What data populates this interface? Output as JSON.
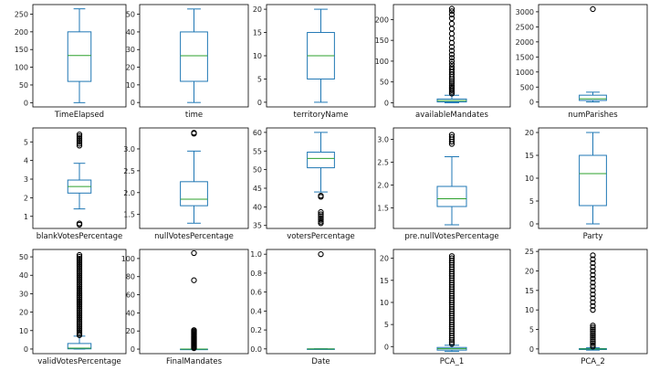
{
  "chart_data": [
    {
      "type": "box",
      "xlabel": "TimeElapsed",
      "yticks": [
        0,
        50,
        100,
        150,
        200,
        250
      ],
      "ylim": [
        -12,
        277
      ],
      "stats": {
        "min": 0,
        "q1": 60,
        "median": 133,
        "q3": 200,
        "max": 265
      },
      "fliers": []
    },
    {
      "type": "box",
      "xlabel": "time",
      "yticks": [
        0,
        10,
        20,
        30,
        40,
        50
      ],
      "ylim": [
        -2.5,
        55.5
      ],
      "stats": {
        "min": 0,
        "q1": 12,
        "median": 26.5,
        "q3": 40,
        "max": 53
      },
      "fliers": []
    },
    {
      "type": "box",
      "xlabel": "territoryName",
      "yticks": [
        0,
        5,
        10,
        15,
        20
      ],
      "ylim": [
        -1,
        21
      ],
      "stats": {
        "min": 0,
        "q1": 5,
        "median": 10,
        "q3": 15,
        "max": 20
      },
      "fliers": []
    },
    {
      "type": "box",
      "xlabel": "availableMandates",
      "yticks": [
        0,
        50,
        100,
        150,
        200
      ],
      "ylim": [
        -10,
        236
      ],
      "stats": {
        "min": 0,
        "q1": 2,
        "median": 5,
        "q3": 9,
        "max": 18
      },
      "fliers": [
        22,
        26,
        30,
        34,
        38,
        42,
        47,
        52,
        57,
        62,
        68,
        74,
        80,
        86,
        93,
        100,
        108,
        116,
        125,
        134,
        144,
        155,
        166,
        178,
        190,
        203,
        212,
        220,
        226
      ]
    },
    {
      "type": "box",
      "xlabel": "numParishes",
      "yticks": [
        0,
        500,
        1000,
        1500,
        2000,
        2500,
        3000
      ],
      "ylim": [
        -160,
        3240
      ],
      "stats": {
        "min": 5,
        "q1": 55,
        "median": 110,
        "q3": 230,
        "max": 330
      },
      "fliers": [
        3090
      ]
    },
    {
      "type": "box",
      "xlabel": "blankVotesPercentage",
      "yticks": [
        1,
        2,
        3,
        4,
        5
      ],
      "ylim": [
        0.35,
        5.75
      ],
      "stats": {
        "min": 1.4,
        "q1": 2.25,
        "median": 2.6,
        "q3": 2.95,
        "max": 3.85
      },
      "fliers": [
        0.55,
        0.62,
        4.8,
        4.9,
        5.0,
        5.1,
        5.2,
        5.3,
        5.4
      ]
    },
    {
      "type": "box",
      "xlabel": "nullVotesPercentage",
      "yticks": [
        1.5,
        2.0,
        2.5,
        3.0
      ],
      "ylim": [
        1.18,
        3.48
      ],
      "stats": {
        "min": 1.3,
        "q1": 1.7,
        "median": 1.85,
        "q3": 2.25,
        "max": 2.95
      },
      "fliers": [
        3.35,
        3.37
      ]
    },
    {
      "type": "box",
      "xlabel": "votersPercentage",
      "yticks": [
        35,
        40,
        45,
        50,
        55,
        60
      ],
      "ylim": [
        34.2,
        61.2
      ],
      "stats": {
        "min": 44,
        "q1": 50.5,
        "median": 53,
        "q3": 54.7,
        "max": 60
      },
      "fliers": [
        42.7,
        43,
        35.6,
        36,
        36.5,
        37,
        37.5,
        38,
        38.6
      ]
    },
    {
      "type": "box",
      "xlabel": "pre.nullVotesPercentage",
      "yticks": [
        1.5,
        2.0,
        2.5,
        3.0
      ],
      "ylim": [
        1.05,
        3.25
      ],
      "stats": {
        "min": 1.13,
        "q1": 1.53,
        "median": 1.7,
        "q3": 1.97,
        "max": 2.62
      },
      "fliers": [
        2.9,
        2.95,
        3.0,
        3.05,
        3.1
      ]
    },
    {
      "type": "box",
      "xlabel": "Party",
      "yticks": [
        0,
        5,
        10,
        15,
        20
      ],
      "ylim": [
        -1,
        21
      ],
      "stats": {
        "min": 0,
        "q1": 4,
        "median": 11,
        "q3": 15,
        "max": 20
      },
      "fliers": []
    },
    {
      "type": "box",
      "xlabel": "validVotesPercentage",
      "yticks": [
        0,
        10,
        20,
        30,
        40,
        50
      ],
      "ylim": [
        -2.5,
        54
      ],
      "stats": {
        "min": 0,
        "q1": 0.1,
        "median": 0.5,
        "q3": 3,
        "max": 7
      },
      "fliers": [
        7.5,
        8.2,
        9,
        10,
        11,
        12,
        13,
        14,
        15,
        16,
        17,
        18,
        19,
        20,
        21,
        22,
        23,
        24,
        25,
        26,
        27,
        28,
        29,
        30,
        31,
        32,
        33,
        34,
        35,
        36,
        37,
        38,
        39,
        40,
        41,
        42,
        43,
        44,
        45,
        46,
        47,
        48,
        49,
        50,
        51
      ]
    },
    {
      "type": "box",
      "xlabel": "FinalMandates",
      "yticks": [
        0,
        20,
        40,
        60,
        80,
        100
      ],
      "ylim": [
        -5,
        110
      ],
      "stats": {
        "min": 0,
        "q1": 0,
        "median": 0,
        "q3": 0,
        "max": 0
      },
      "fliers": [
        1,
        2,
        3,
        4,
        5,
        6,
        7,
        8,
        9,
        10,
        11,
        12,
        13,
        14,
        15,
        16,
        17,
        18,
        19,
        20,
        21,
        76,
        106
      ]
    },
    {
      "type": "box",
      "xlabel": "Date",
      "yticks": [
        0.0,
        0.2,
        0.4,
        0.6,
        0.8,
        1.0
      ],
      "ylim": [
        -0.05,
        1.05
      ],
      "stats": {
        "min": 0,
        "q1": 0,
        "median": 0,
        "q3": 0,
        "max": 0
      },
      "fliers": [
        1.0
      ]
    },
    {
      "type": "box",
      "xlabel": "PCA_1",
      "yticks": [
        0,
        5,
        10,
        15,
        20
      ],
      "ylim": [
        -1.6,
        22
      ],
      "stats": {
        "min": -1.1,
        "q1": -0.8,
        "median": -0.5,
        "q3": -0.2,
        "max": 0.3
      },
      "fliers": [
        0.6,
        1,
        1.5,
        2,
        2.5,
        3,
        3.5,
        4,
        4.5,
        5,
        5.5,
        6,
        6.5,
        7,
        7.5,
        8,
        8.5,
        9,
        9.5,
        10,
        10.5,
        11,
        11.5,
        12,
        12.5,
        13,
        13.5,
        14,
        14.5,
        15,
        15.5,
        16,
        16.5,
        17,
        17.5,
        18,
        18.5,
        19,
        19.5,
        20,
        20.5
      ]
    },
    {
      "type": "box",
      "xlabel": "PCA_2",
      "yticks": [
        0,
        5,
        10,
        15,
        20,
        25
      ],
      "ylim": [
        -1.2,
        25.5
      ],
      "stats": {
        "min": -0.3,
        "q1": -0.15,
        "median": 0,
        "q3": 0.1,
        "max": 0.3
      },
      "fliers": [
        0.6,
        1,
        1.5,
        2,
        2.5,
        3,
        3.5,
        4,
        4.5,
        5,
        5.5,
        6,
        10,
        11,
        12,
        13,
        14,
        15,
        16,
        17,
        18,
        19,
        20,
        21,
        22,
        23,
        24
      ]
    }
  ]
}
